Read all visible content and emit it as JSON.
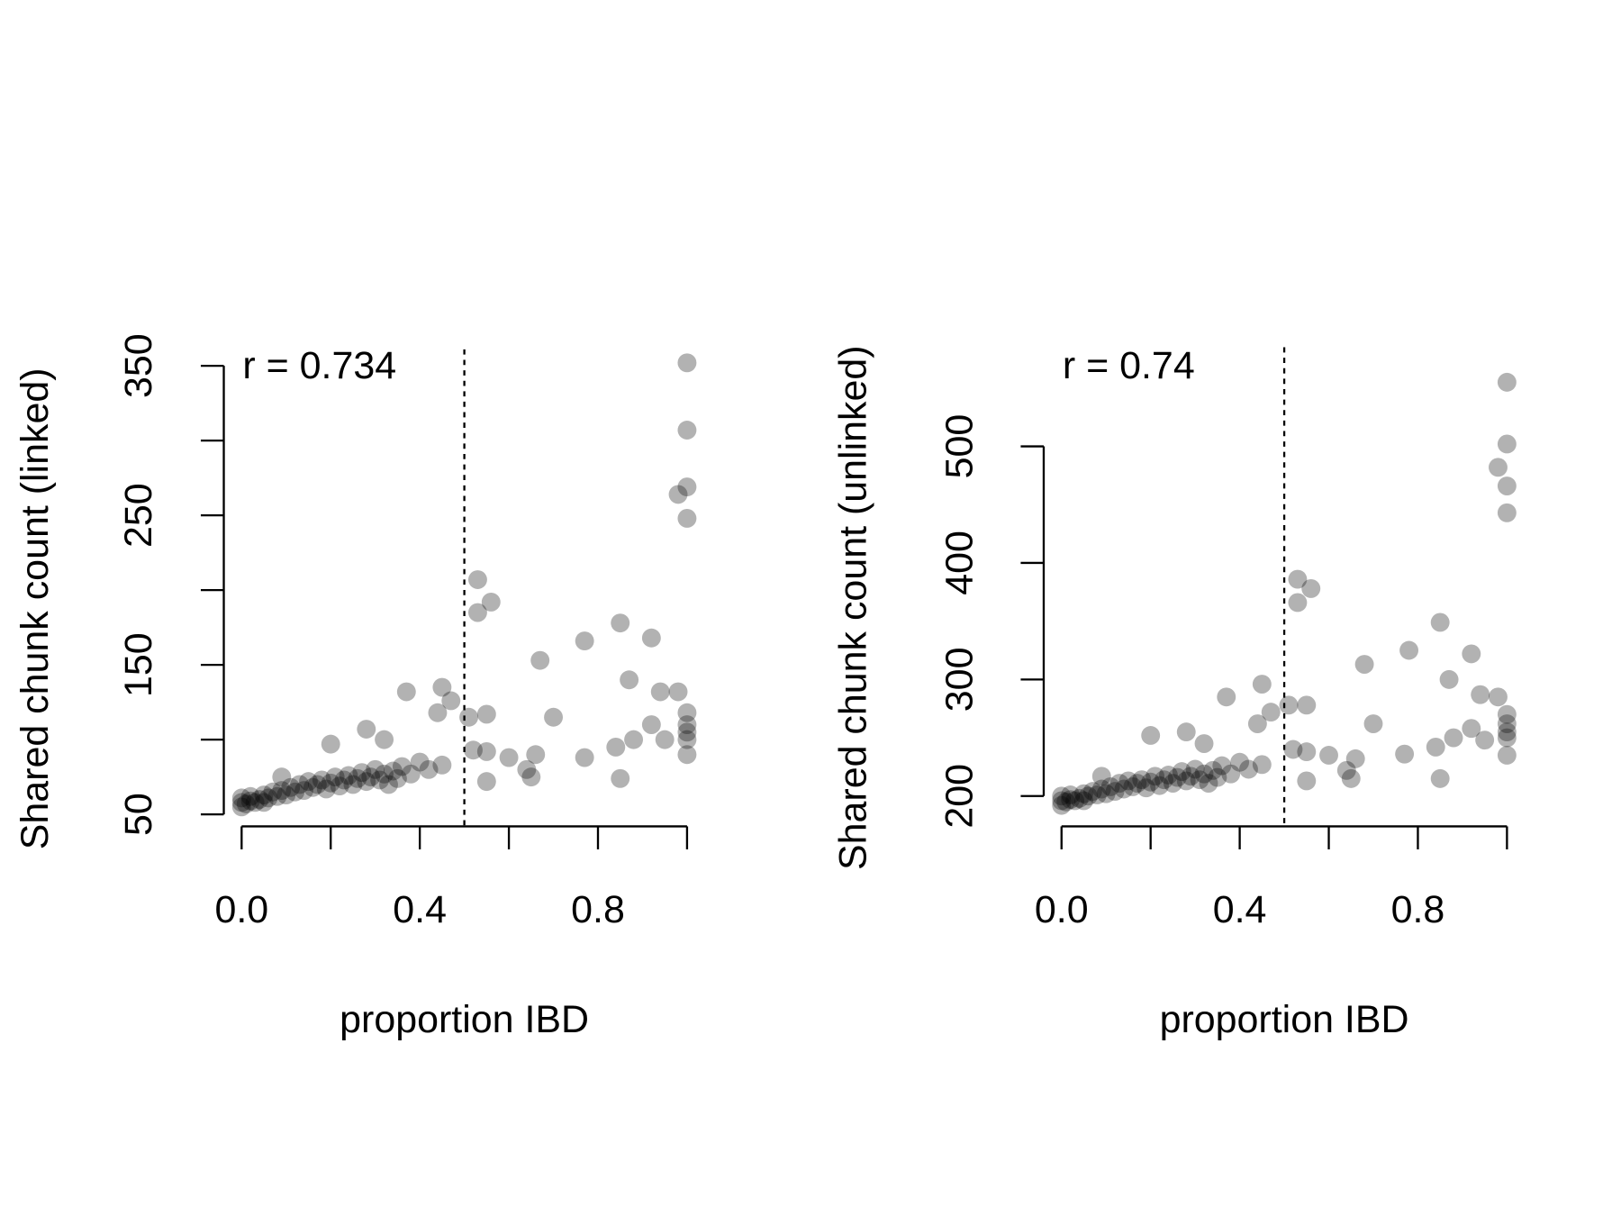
{
  "chart_data": [
    {
      "type": "scatter",
      "xlabel": "proportion IBD",
      "ylabel": "Shared chunk count (linked)",
      "annotation": "r = 0.734",
      "vline": 0.5,
      "color": "#000000",
      "alpha": 0.3,
      "xlim": [
        -0.04,
        1.04
      ],
      "ylim": [
        42,
        361
      ],
      "xticks": [
        {
          "value": 0,
          "label": "0.0"
        },
        {
          "value": 0.2,
          "label": null
        },
        {
          "value": 0.4,
          "label": "0.4"
        },
        {
          "value": 0.6,
          "label": null
        },
        {
          "value": 0.8,
          "label": "0.8"
        },
        {
          "value": 1,
          "label": null
        }
      ],
      "yticks": [
        50,
        {
          "value": 100,
          "label": null
        },
        150,
        {
          "value": 200,
          "label": null
        },
        250,
        {
          "value": 300,
          "label": null
        },
        350
      ],
      "x": [
        1,
        1,
        0.98,
        1,
        1,
        0.53,
        0.53,
        0.56,
        0.85,
        0.92,
        0.77,
        0.67,
        0.87,
        0.37,
        0.45,
        0.47,
        0.94,
        0.98,
        0.55,
        0.7,
        0.44,
        0.51,
        0.92,
        0.55,
        0.52,
        0.55,
        0.6,
        0.64,
        0.65,
        0.66,
        0.77,
        0.84,
        0.85,
        0.88,
        0.95,
        1,
        1,
        1,
        1,
        1,
        0.28,
        0.2,
        0.32,
        0,
        0,
        0,
        0.01,
        0.02,
        0.02,
        0.03,
        0.04,
        0.05,
        0.05,
        0.06,
        0.07,
        0.08,
        0.09,
        0.1,
        0.11,
        0.12,
        0.13,
        0.14,
        0.15,
        0.16,
        0.17,
        0.18,
        0.19,
        0.2,
        0.21,
        0.22,
        0.23,
        0.24,
        0.25,
        0.26,
        0.27,
        0.28,
        0.29,
        0.3,
        0.31,
        0.32,
        0.33,
        0.34,
        0.35,
        0.36,
        0.38,
        0.4,
        0.42,
        0.45,
        0.09
      ],
      "values": [
        352,
        307,
        264,
        269,
        248,
        207,
        185,
        192,
        178,
        168,
        166,
        153,
        140,
        132,
        135,
        126,
        132,
        132,
        117,
        115,
        118,
        115,
        110,
        92,
        93,
        72,
        88,
        80,
        75,
        90,
        88,
        95,
        74,
        100,
        100,
        90,
        100,
        110,
        118,
        105,
        107,
        97,
        100,
        55,
        58,
        61,
        57,
        59,
        62,
        58,
        60,
        63,
        58,
        61,
        65,
        62,
        66,
        63,
        68,
        65,
        70,
        66,
        72,
        68,
        70,
        73,
        67,
        71,
        75,
        69,
        73,
        76,
        70,
        74,
        78,
        72,
        75,
        80,
        73,
        77,
        70,
        79,
        74,
        82,
        77,
        85,
        80,
        83,
        75
      ]
    },
    {
      "type": "scatter",
      "xlabel": "proportion IBD",
      "ylabel": "Shared chunk count (unlinked)",
      "annotation": "r = 0.74",
      "vline": 0.5,
      "color": "#000000",
      "alpha": 0.3,
      "xlim": [
        -0.04,
        1.04
      ],
      "ylim": [
        174,
        585
      ],
      "xticks": [
        {
          "value": 0,
          "label": "0.0"
        },
        {
          "value": 0.2,
          "label": null
        },
        {
          "value": 0.4,
          "label": "0.4"
        },
        {
          "value": 0.6,
          "label": null
        },
        {
          "value": 0.8,
          "label": "0.8"
        },
        {
          "value": 1,
          "label": null
        }
      ],
      "yticks": [
        200,
        300,
        400,
        500
      ],
      "x": [
        1,
        1,
        0.98,
        1,
        1,
        0.53,
        0.53,
        0.56,
        0.85,
        0.92,
        0.78,
        0.68,
        0.87,
        0.37,
        0.45,
        0.47,
        0.94,
        0.98,
        0.55,
        0.7,
        0.44,
        0.51,
        0.92,
        0.55,
        0.52,
        0.55,
        0.6,
        0.64,
        0.65,
        0.66,
        0.77,
        0.84,
        0.85,
        0.88,
        0.95,
        1,
        1,
        1,
        1,
        1,
        0.28,
        0.2,
        0.32,
        0,
        0,
        0,
        0.01,
        0.02,
        0.02,
        0.03,
        0.04,
        0.05,
        0.05,
        0.06,
        0.07,
        0.08,
        0.09,
        0.1,
        0.11,
        0.12,
        0.13,
        0.14,
        0.15,
        0.16,
        0.17,
        0.18,
        0.19,
        0.2,
        0.21,
        0.22,
        0.23,
        0.24,
        0.25,
        0.26,
        0.27,
        0.28,
        0.29,
        0.3,
        0.31,
        0.32,
        0.33,
        0.34,
        0.35,
        0.36,
        0.38,
        0.4,
        0.42,
        0.45,
        0.09
      ],
      "values": [
        555,
        502,
        482,
        466,
        443,
        386,
        366,
        378,
        349,
        322,
        325,
        313,
        300,
        285,
        296,
        272,
        287,
        285,
        278,
        262,
        262,
        278,
        258,
        238,
        240,
        213,
        235,
        222,
        215,
        232,
        236,
        242,
        215,
        250,
        248,
        235,
        250,
        262,
        270,
        255,
        255,
        252,
        245,
        192,
        196,
        200,
        195,
        197,
        201,
        196,
        198,
        202,
        196,
        200,
        204,
        201,
        206,
        202,
        208,
        204,
        211,
        206,
        213,
        208,
        211,
        214,
        207,
        212,
        217,
        209,
        214,
        218,
        211,
        216,
        221,
        213,
        217,
        223,
        214,
        219,
        211,
        222,
        216,
        226,
        219,
        229,
        223,
        227,
        217
      ]
    }
  ]
}
